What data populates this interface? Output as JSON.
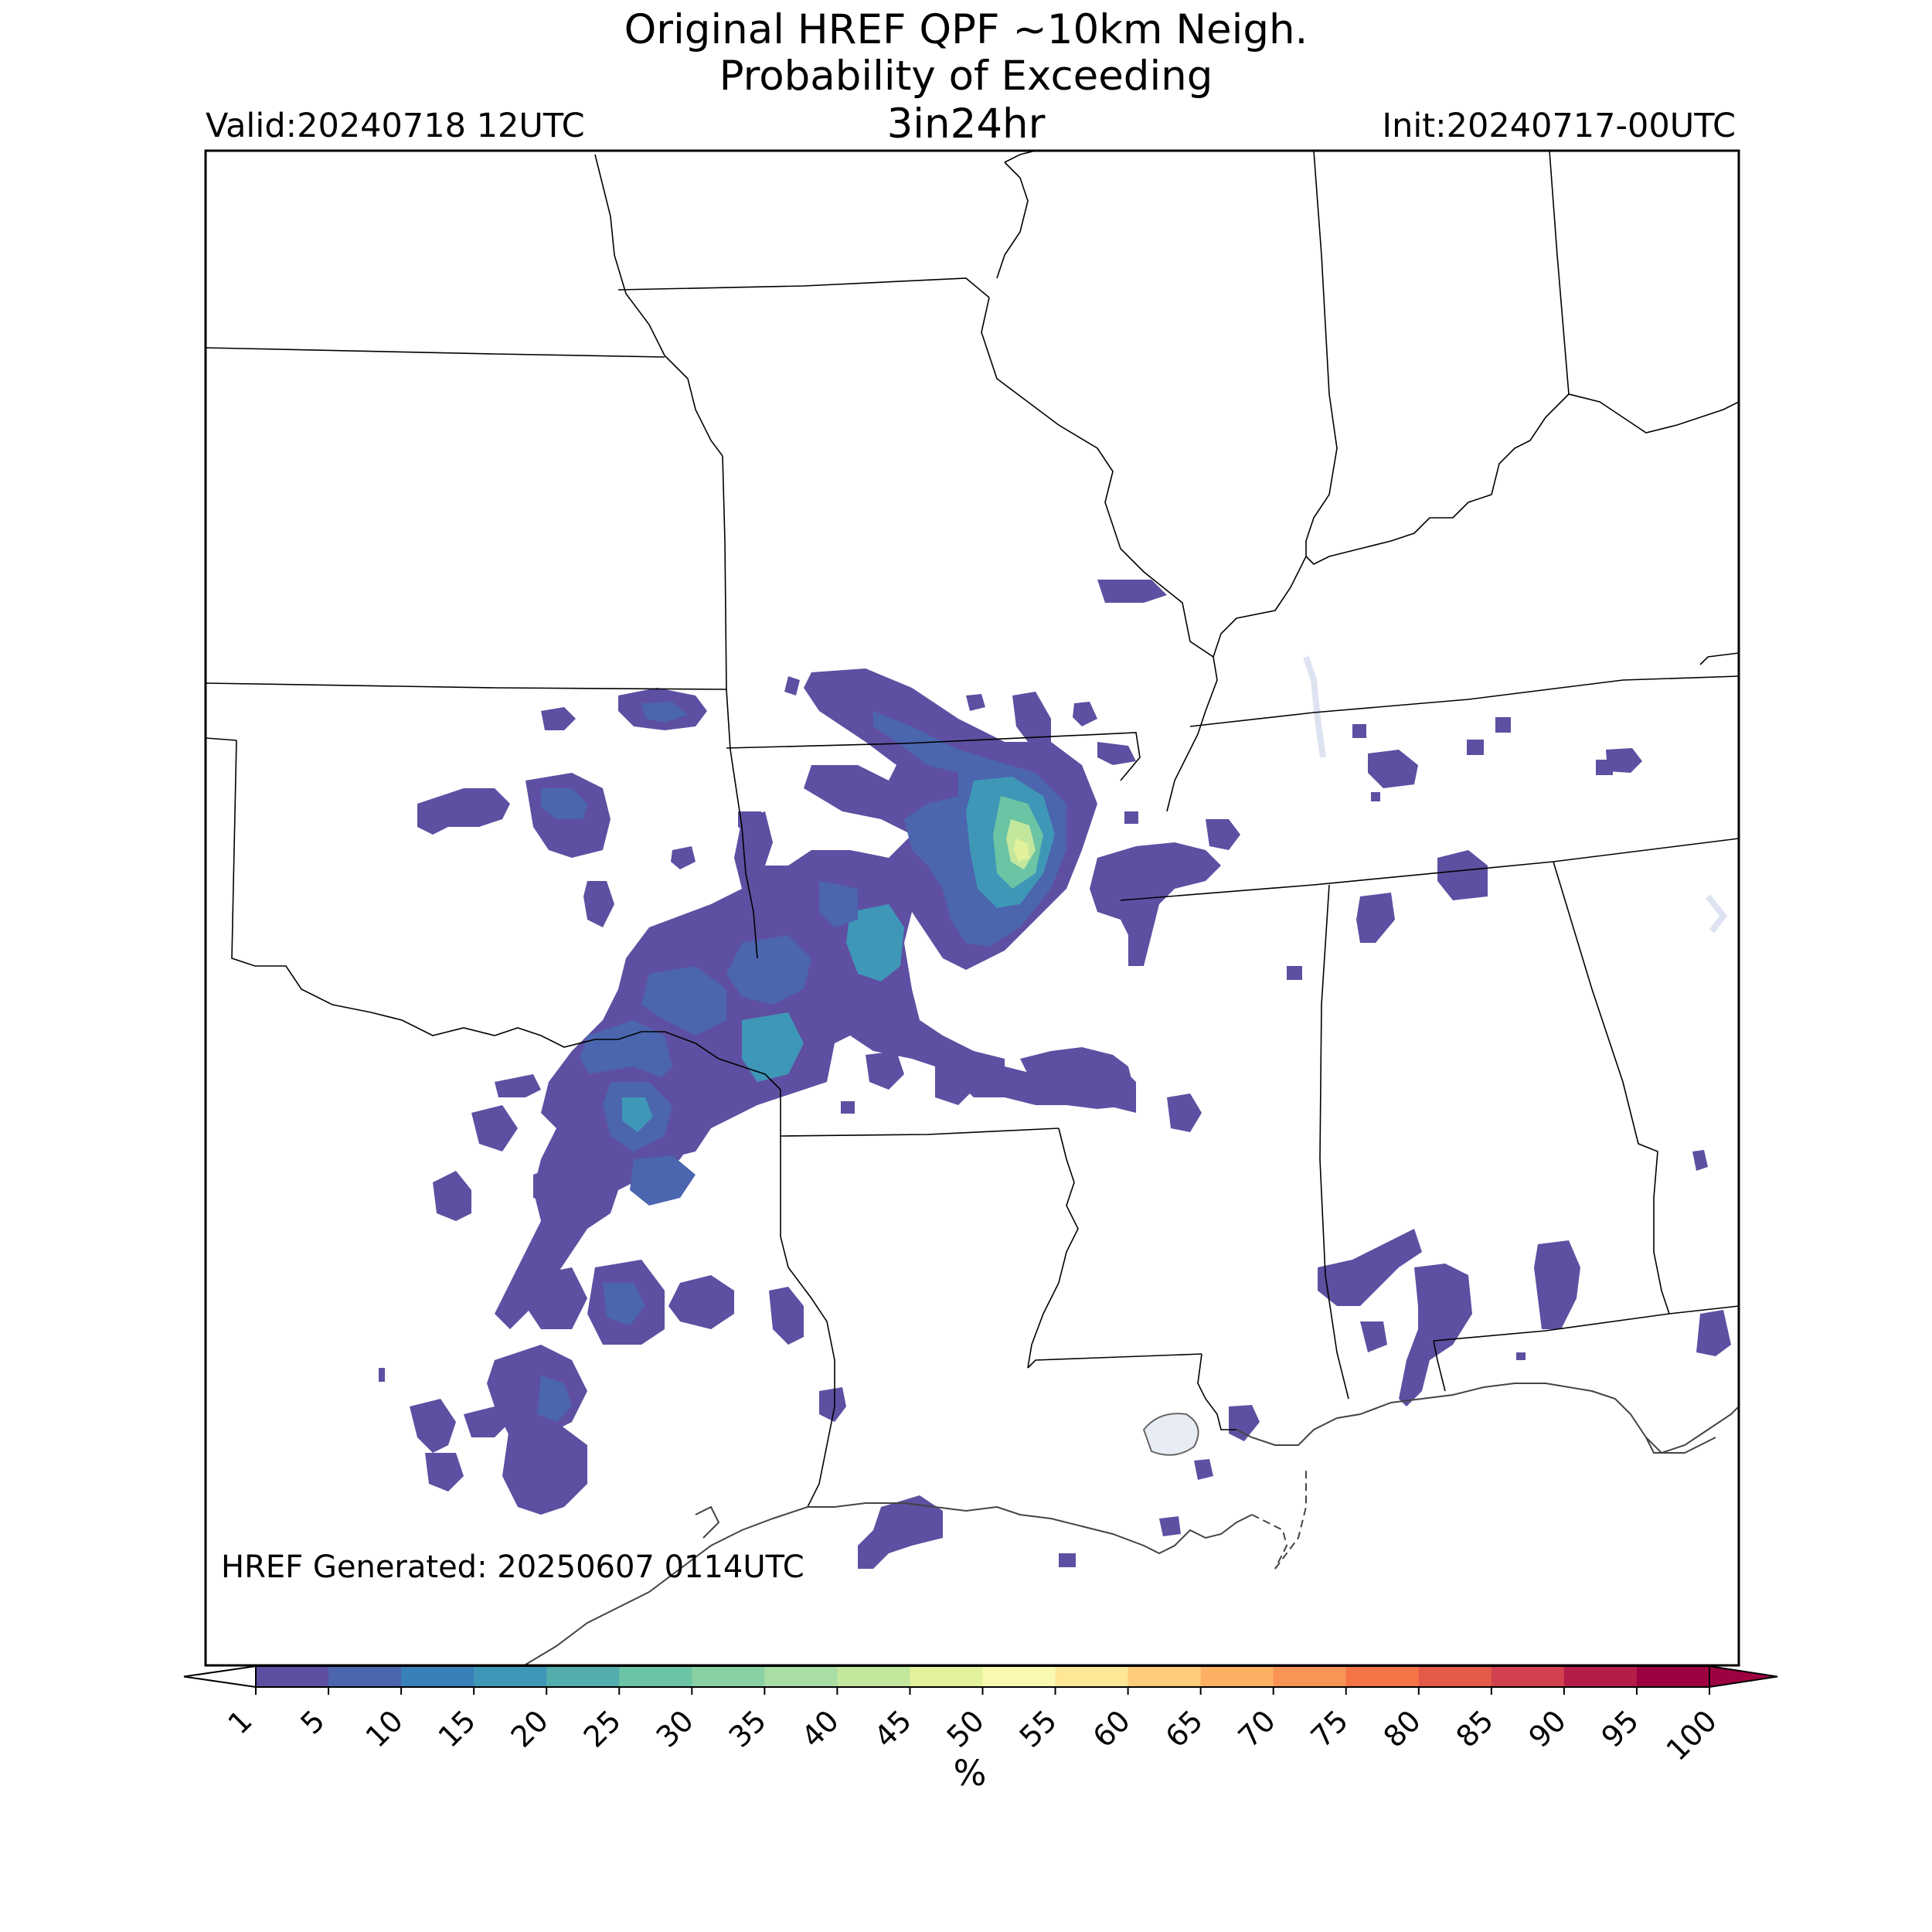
{
  "header": {
    "title_line1": "Original HREF QPF ~10km Neigh.",
    "title_line2": "Probability of Exceeding",
    "title_line3": "3in24hr",
    "valid": "Valid:20240718 12UTC",
    "init": "Init:20240717-00UTC"
  },
  "footer": {
    "generated": "HREF Generated: 20250607 0114UTC"
  },
  "colorbar": {
    "label": "%",
    "ticks": [
      "1",
      "5",
      "10",
      "15",
      "20",
      "25",
      "30",
      "35",
      "40",
      "45",
      "50",
      "55",
      "60",
      "65",
      "70",
      "75",
      "80",
      "85",
      "90",
      "95",
      "100"
    ],
    "colors": [
      "#5e4fa2",
      "#4b65ae",
      "#3880b9",
      "#3f97b7",
      "#53adad",
      "#6bc4a4",
      "#89d1a4",
      "#a8dda4",
      "#c4e79e",
      "#e2f29a",
      "#f9f9b1",
      "#fee795",
      "#fecc7b",
      "#fdb062",
      "#fa9356",
      "#f47446",
      "#e45a49",
      "#d3404e",
      "#b51c47",
      "#9e0142"
    ],
    "extend_low": "#ffffff",
    "extend_high": "#9e0142"
  },
  "map": {
    "colors": {
      "border": "#000000",
      "coast": "#555555",
      "water": "#e8ecf4",
      "p1": "#5e4fa2",
      "p5": "#4b65ae",
      "p10": "#3880b9",
      "p15": "#3f97b7",
      "p20": "#53adad",
      "p25": "#6bc4a4",
      "p30": "#89d1a4",
      "p40": "#c4e79e",
      "p45": "#e2f29a"
    }
  }
}
